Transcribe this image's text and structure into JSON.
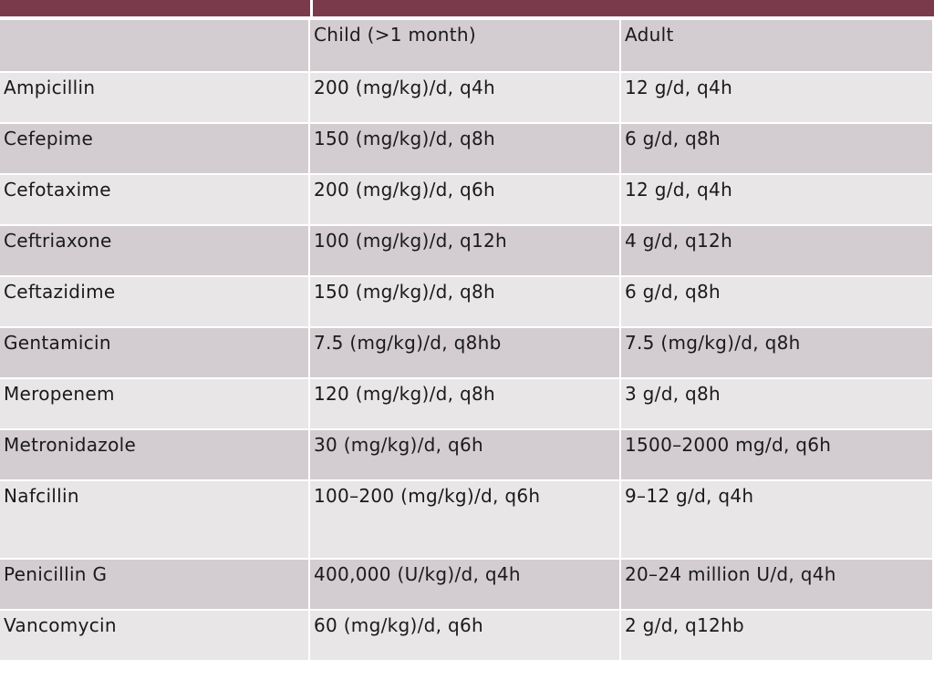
{
  "table": {
    "header": [
      "",
      "Child (>1 month)",
      "Adult"
    ],
    "rows": [
      [
        "Ampicillin",
        "200 (mg/kg)/d, q4h",
        "12 g/d, q4h"
      ],
      [
        "Cefepime",
        "150 (mg/kg)/d, q8h",
        "6 g/d, q8h"
      ],
      [
        "Cefotaxime",
        "200 (mg/kg)/d, q6h",
        "12 g/d, q4h"
      ],
      [
        "Ceftriaxone",
        "100 (mg/kg)/d, q12h",
        "4 g/d, q12h"
      ],
      [
        "Ceftazidime",
        "150 (mg/kg)/d, q8h",
        "6 g/d, q8h"
      ],
      [
        "Gentamicin",
        "7.5 (mg/kg)/d, q8hb",
        "7.5 (mg/kg)/d, q8h"
      ],
      [
        "Meropenem",
        "120 (mg/kg)/d, q8h",
        "3 g/d, q8h"
      ],
      [
        "Metronidazole",
        "30 (mg/kg)/d, q6h",
        "1500–2000 mg/d, q6h"
      ],
      [
        "Nafcillin",
        "100–200 (mg/kg)/d, q6h",
        "9–12 g/d, q4h"
      ],
      [
        "Penicillin G",
        "400,000 (U/kg)/d, q4h",
        "20–24 million U/d, q4h"
      ],
      [
        "Vancomycin",
        "60 (mg/kg)/d, q6h",
        "2 g/d, q12hb"
      ]
    ]
  },
  "colors": {
    "banner": "#7b3a4b",
    "row_light": "#e9e6e8",
    "row_dark": "#d3ccd0"
  }
}
